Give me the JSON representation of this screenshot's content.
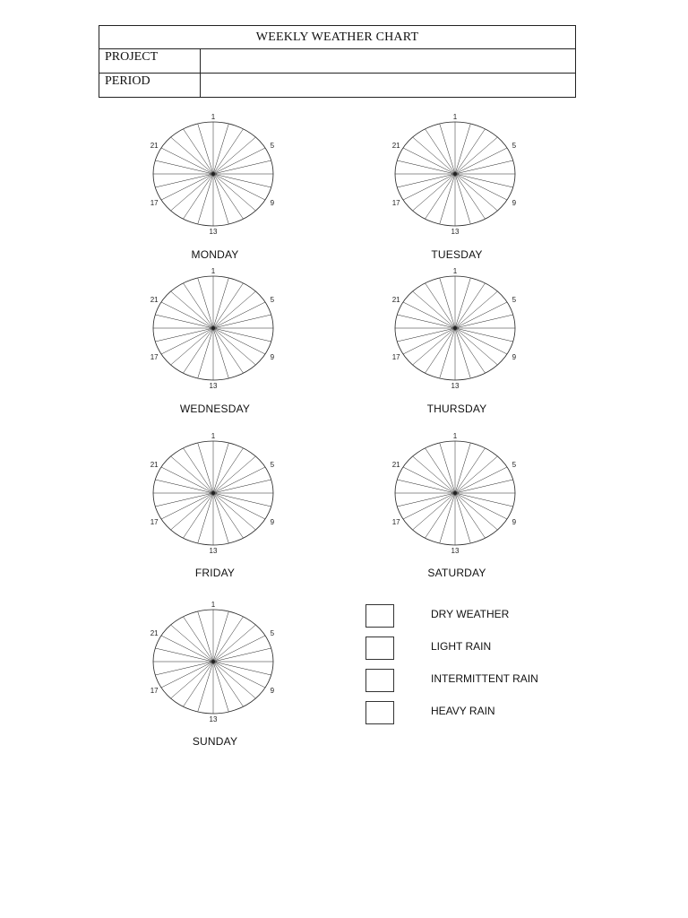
{
  "header": {
    "title": "WEEKLY WEATHER CHART",
    "rows": [
      {
        "label": "PROJECT",
        "value": ""
      },
      {
        "label": "PERIOD",
        "value": ""
      }
    ]
  },
  "dial": {
    "hour_labels": [
      "1",
      "5",
      "9",
      "13",
      "17",
      "21"
    ],
    "spoke_count": 24
  },
  "days": [
    "MONDAY",
    "TUESDAY",
    "WEDNESDAY",
    "THURSDAY",
    "FRIDAY",
    "SATURDAY",
    "SUNDAY"
  ],
  "legend": [
    {
      "label": "DRY WEATHER"
    },
    {
      "label": "LIGHT RAIN"
    },
    {
      "label": "INTERMITTENT RAIN"
    },
    {
      "label": "HEAVY RAIN"
    }
  ],
  "colors": {
    "ink": "#222222",
    "paper": "#ffffff"
  }
}
